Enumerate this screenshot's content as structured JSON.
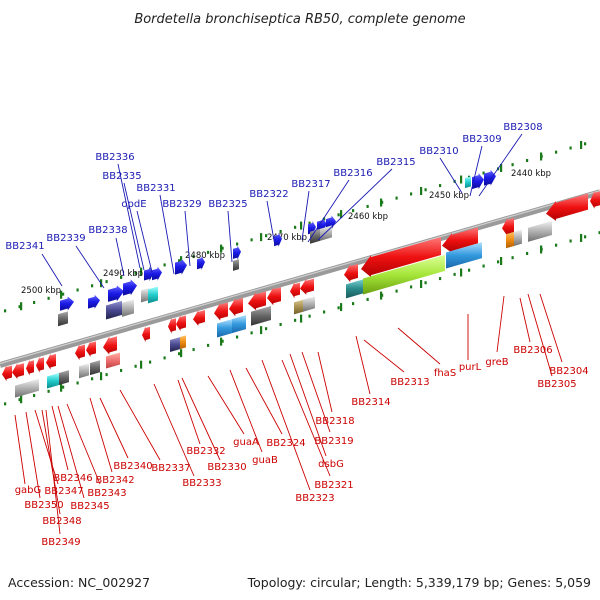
{
  "title": "Bordetella bronchiseptica RB50, complete genome",
  "footer": {
    "accession": "Accession: NC_002927",
    "topology": "Topology: circular; Length: 5,339,179 bp; Genes: 5,059"
  },
  "colors": {
    "forward_label": "#1a1ab4",
    "reverse_label": "#cc0000",
    "forward_gene": "#1a1ae6",
    "reverse_gene": "#ee1111",
    "backbone": "#7a7a7a",
    "tick": "#1a7a1a"
  },
  "scale_labels": [
    "2500 kbp",
    "2490 kbp",
    "2480 kbp",
    "2470 kbp",
    "2460 kbp",
    "2450 kbp",
    "2440 kbp"
  ],
  "forward_labels": [
    "BB2341",
    "BB2339",
    "BB2338",
    "BB2336",
    "BB2335",
    "opdE",
    "BB2331",
    "BB2329",
    "BB2325",
    "BB2322",
    "BB2317",
    "BB2316",
    "BB2315",
    "BB2310",
    "BB2309",
    "BB2308"
  ],
  "reverse_labels": [
    "gabG",
    "BB2350",
    "BB2347",
    "BB2348",
    "BB2349",
    "BB2346",
    "BB2345",
    "BB2343",
    "BB2342",
    "BB2340",
    "BB2337",
    "BB2333",
    "BB2332",
    "BB2330",
    "guaA",
    "guaB",
    "BB2324",
    "BB2323",
    "BB2321",
    "dsbG",
    "BB2319",
    "BB2318",
    "BB2314",
    "BB2313",
    "fhaS",
    "purL",
    "greB",
    "BB2306",
    "BB2305",
    "BB2304"
  ]
}
